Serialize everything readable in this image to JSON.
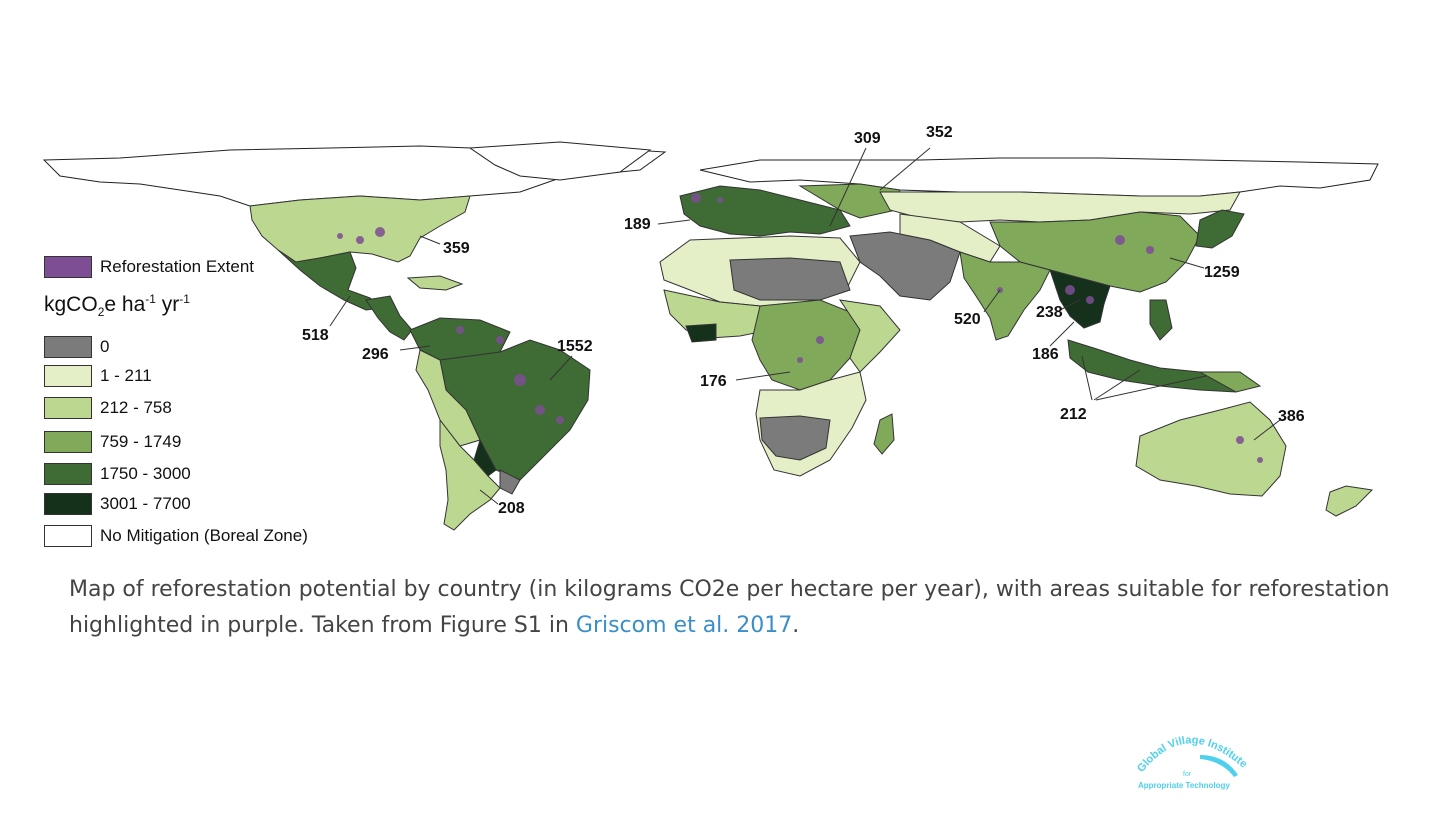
{
  "map": {
    "legend": {
      "reforestation_label": "Reforestation Extent",
      "unit_main": "kgCO",
      "unit_sub": "2",
      "unit_mid": "e ha",
      "unit_sup1": "-1",
      "unit_mid2": " yr",
      "unit_sup2": "-1",
      "items": [
        {
          "label": "0",
          "color": "#7b7b7b"
        },
        {
          "label": "1 - 211",
          "color": "#e4efc8"
        },
        {
          "label": "212 - 758",
          "color": "#bcd890"
        },
        {
          "label": "759 - 1749",
          "color": "#80a95a"
        },
        {
          "label": "1750 - 3000",
          "color": "#3f6b34"
        },
        {
          "label": "3001 - 7700",
          "color": "#15311c"
        },
        {
          "label": "No Mitigation (Boreal Zone)",
          "color": "#ffffff"
        }
      ],
      "reforestation_color": "#7d4e93"
    },
    "value_labels": [
      "359",
      "518",
      "296",
      "1552",
      "208",
      "189",
      "309",
      "352",
      "176",
      "520",
      "238",
      "186",
      "1259",
      "212",
      "386"
    ]
  },
  "caption": {
    "text": "Map of reforestation potential by country (in kilograms CO2e per hectare per year), with areas suitable for reforestation highlighted in purple. Taken from Figure S1 in ",
    "link_text": "Griscom et al. 2017",
    "end": "."
  },
  "logo": {
    "line1": "Global Village Institute",
    "line2": "for",
    "line3": "Appropriate Technology"
  }
}
